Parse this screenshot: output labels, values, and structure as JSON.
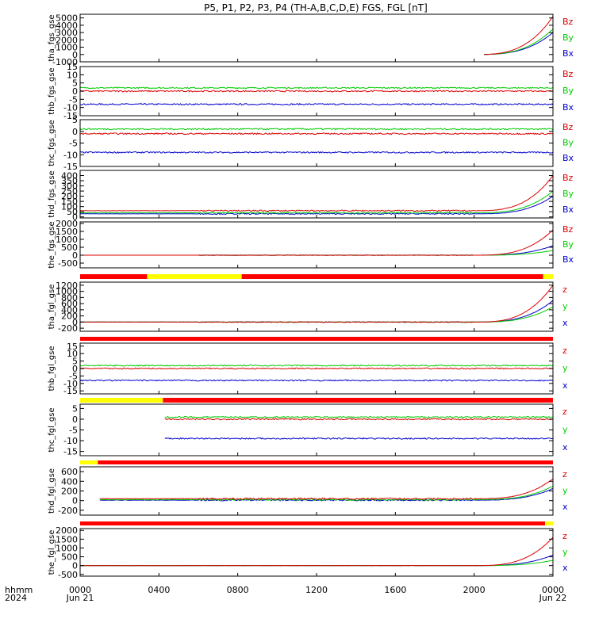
{
  "chart_data": {
    "type": "line",
    "title": "P5, P1, P2, P3, P4 (TH-A,B,C,D,E) FGS, FGL [nT]",
    "x_axis": {
      "row1_label": "hhmm",
      "row2_label": "2024",
      "ticks": [
        "0000",
        "0400",
        "0800",
        "1200",
        "1600",
        "2000",
        "0000"
      ],
      "tick_hours": [
        0,
        4,
        8,
        12,
        16,
        20,
        24
      ],
      "date_labels": [
        {
          "hour": 0,
          "text": "Jun 21"
        },
        {
          "hour": 24,
          "text": "Jun 22"
        }
      ],
      "range_hours": [
        0,
        24
      ]
    },
    "colors": {
      "x": "#0000cc",
      "y": "#00cc00",
      "z": "#dd0000",
      "bar_red": "#ff0000",
      "bar_yellow": "#ffff00"
    },
    "panels": [
      {
        "ylabel": "tha_fgs_gse",
        "yrange": [
          -1000,
          5500
        ],
        "yticks": [
          -1000,
          0,
          1000,
          2000,
          3000,
          4000,
          5000
        ],
        "legend": [
          "Bz",
          "By",
          "Bx"
        ],
        "profile": {
          "shape": "rise",
          "zero_level": 0,
          "series": {
            "x": [
              0,
              3000
            ],
            "y": [
              0,
              3500
            ],
            "z": [
              0,
              5200
            ]
          },
          "noise": 0,
          "start_h": 20.5
        }
      },
      {
        "ylabel": "thb_fgs_gse",
        "yrange": [
          -15,
          15
        ],
        "yticks": [
          -15,
          -10,
          -5,
          0,
          5,
          10,
          15
        ],
        "legend": [
          "Bz",
          "By",
          "Bx"
        ],
        "profile": {
          "shape": "flat",
          "series": {
            "x": -8,
            "y": 2,
            "z": 0
          },
          "noise": 0.8,
          "start_h": 0
        }
      },
      {
        "ylabel": "thc_fgs_gse",
        "yrange": [
          -15,
          5
        ],
        "yticks": [
          -15,
          -10,
          -5,
          0,
          5
        ],
        "legend": [
          "Bz",
          "By",
          "Bx"
        ],
        "profile": {
          "shape": "flat",
          "series": {
            "x": -9,
            "y": 1,
            "z": -1
          },
          "noise": 0.6,
          "start_h": 0
        }
      },
      {
        "ylabel": "thd_fgs_gse",
        "yrange": [
          -10,
          450
        ],
        "yticks": [
          0,
          50,
          100,
          150,
          200,
          250,
          300,
          350,
          400
        ],
        "legend": [
          "Bz",
          "By",
          "Bx"
        ],
        "profile": {
          "shape": "rise",
          "zero_level": 40,
          "series": {
            "x": [
              30,
              200
            ],
            "y": [
              40,
              250
            ],
            "z": [
              60,
              400
            ]
          },
          "noise": 6,
          "start_h": 0
        }
      },
      {
        "ylabel": "the_fgs_gse",
        "yrange": [
          -800,
          2100
        ],
        "yticks": [
          -500,
          0,
          500,
          1000,
          1500,
          2000
        ],
        "legend": [
          "Bz",
          "By",
          "Bx"
        ],
        "profile": {
          "shape": "rise",
          "zero_level": 0,
          "series": {
            "x": [
              0,
              600
            ],
            "y": [
              0,
              300
            ],
            "z": [
              0,
              1600
            ]
          },
          "noise": 10,
          "start_h": 0
        }
      },
      {
        "ylabel": "tha_fgl_gse",
        "yrange": [
          -300,
          1300
        ],
        "yticks": [
          -200,
          0,
          200,
          400,
          600,
          800,
          1000,
          1200
        ],
        "legend": [
          "z",
          "y",
          "x"
        ],
        "profile": {
          "shape": "rise",
          "zero_level": 0,
          "series": {
            "x": [
              0,
              700
            ],
            "y": [
              0,
              500
            ],
            "z": [
              0,
              1200
            ]
          },
          "noise": 12,
          "start_h": 0
        }
      },
      {
        "ylabel": "thb_fgl_gse",
        "yrange": [
          -17,
          17
        ],
        "yticks": [
          -15,
          -10,
          -5,
          0,
          5,
          10,
          15
        ],
        "legend": [
          "z",
          "y",
          "x"
        ],
        "profile": {
          "shape": "flat",
          "series": {
            "x": -8,
            "y": 2,
            "z": 0
          },
          "noise": 0.8,
          "start_h": 0
        }
      },
      {
        "ylabel": "thc_fgl_gse",
        "yrange": [
          -17,
          7
        ],
        "yticks": [
          -15,
          -10,
          -5,
          0,
          5
        ],
        "legend": [
          "z",
          "y",
          "x"
        ],
        "profile": {
          "shape": "flat",
          "series": {
            "x": -9,
            "y": 1,
            "z": 0
          },
          "noise": 0.6,
          "start_h": 4.3
        }
      },
      {
        "ylabel": "thd_fgl_gse",
        "yrange": [
          -300,
          700
        ],
        "yticks": [
          -200,
          0,
          200,
          400,
          600
        ],
        "legend": [
          "z",
          "y",
          "x"
        ],
        "profile": {
          "shape": "rise",
          "zero_level": 20,
          "series": {
            "x": [
              10,
              250
            ],
            "y": [
              20,
              300
            ],
            "z": [
              40,
              450
            ]
          },
          "noise": 15,
          "start_h": 1
        }
      },
      {
        "ylabel": "the_fgl_gse",
        "yrange": [
          -600,
          2100
        ],
        "yticks": [
          -500,
          0,
          500,
          1000,
          1500,
          2000
        ],
        "legend": [
          "z",
          "y",
          "x"
        ],
        "profile": {
          "shape": "rise",
          "zero_level": 0,
          "series": {
            "x": [
              0,
              600
            ],
            "y": [
              0,
              300
            ],
            "z": [
              0,
              1600
            ]
          },
          "noise": 8,
          "start_h": 0
        }
      }
    ],
    "mode_bars": [
      {
        "after_panel": 4,
        "segments": [
          {
            "h0": 0,
            "h1": 3.4,
            "color": "red"
          },
          {
            "h0": 3.4,
            "h1": 8.2,
            "color": "yellow"
          },
          {
            "h0": 8.2,
            "h1": 23.5,
            "color": "red"
          },
          {
            "h0": 23.5,
            "h1": 24,
            "color": "yellow"
          }
        ]
      },
      {
        "after_panel": 5,
        "segments": [
          {
            "h0": 0,
            "h1": 24,
            "color": "red"
          }
        ]
      },
      {
        "after_panel": 6,
        "segments": [
          {
            "h0": 0,
            "h1": 4.2,
            "color": "yellow"
          },
          {
            "h0": 4.2,
            "h1": 24,
            "color": "red"
          }
        ]
      },
      {
        "after_panel": 7,
        "segments": [
          {
            "h0": 0,
            "h1": 0.9,
            "color": "yellow"
          },
          {
            "h0": 0.9,
            "h1": 24,
            "color": "red"
          }
        ]
      },
      {
        "after_panel": 8,
        "segments": [
          {
            "h0": 0,
            "h1": 23.6,
            "color": "red"
          },
          {
            "h0": 23.6,
            "h1": 24,
            "color": "yellow"
          }
        ]
      }
    ]
  }
}
